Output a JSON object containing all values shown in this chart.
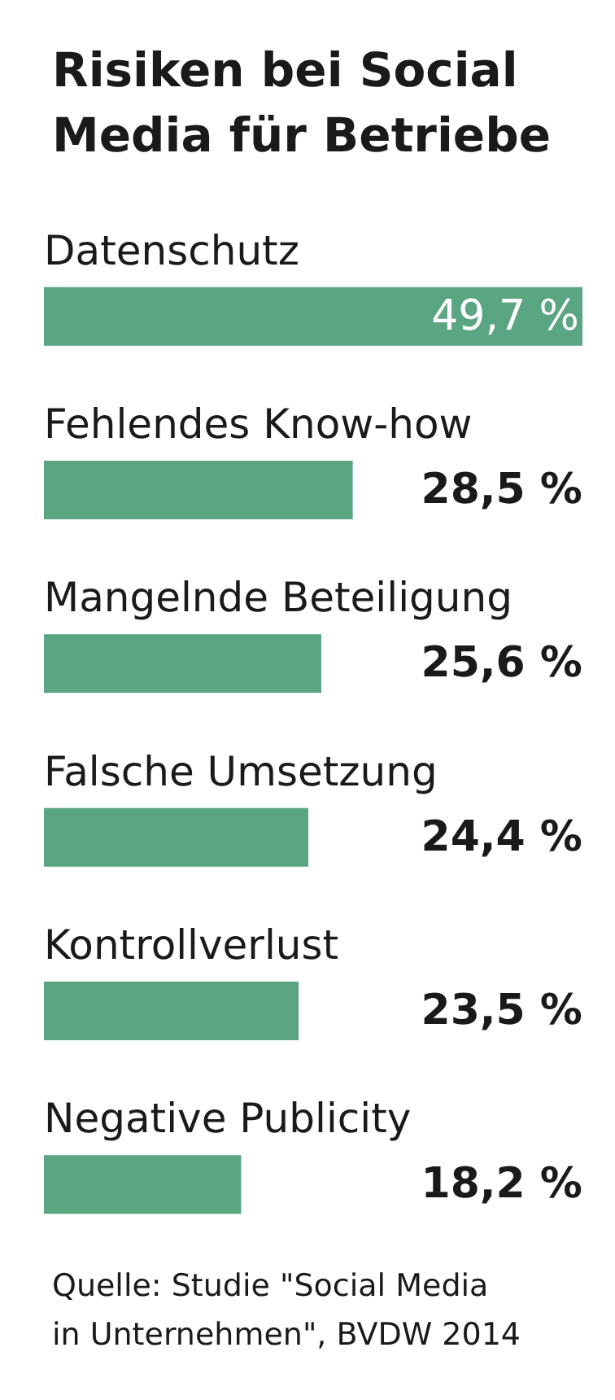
{
  "chart_data": {
    "type": "bar",
    "orientation": "horizontal",
    "title": "Risiken bei Social Media für Betriebe",
    "categories": [
      "Datenschutz",
      "Fehlendes Know-how",
      "Mangelnde Beteiligung",
      "Falsche Umsetzung",
      "Kontrollverlust",
      "Negative Publicity"
    ],
    "values": [
      49.7,
      28.5,
      25.6,
      24.4,
      23.5,
      18.2
    ],
    "value_labels": [
      "49,7 %",
      "28,5 %",
      "25,6 %",
      "24,4 %",
      "23,5 %",
      "18,2 %"
    ],
    "color": "#5aa582",
    "annotations": [
      "Quelle: Studie \"Social Media in Unternehmen\", BVDW 2014"
    ]
  }
}
